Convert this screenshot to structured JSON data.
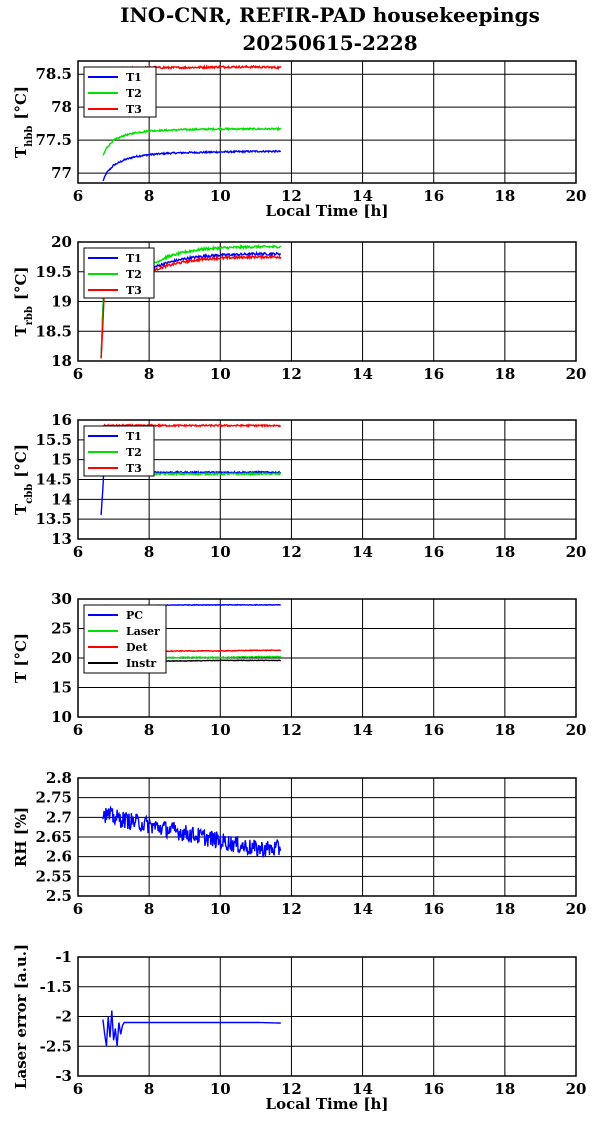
{
  "page": {
    "title_line1": "INO-CNR, REFIR-PAD housekeepings",
    "title_line2": "20250615-2228"
  },
  "chart_data": [
    {
      "type": "line",
      "title": "",
      "ylabel_main": "T",
      "ylabel_sub": "hbb",
      "ylabel_unit": "[°C]",
      "xlabel": "Local Time [h]",
      "xlim": [
        6,
        20
      ],
      "ylim": [
        76.85,
        78.7
      ],
      "xticks": [
        6,
        8,
        10,
        12,
        14,
        16,
        18,
        20
      ],
      "yticks": [
        77,
        77.5,
        78,
        78.5
      ],
      "ytick_labels": [
        "77",
        "77.5",
        "78",
        "78.5"
      ],
      "grid": true,
      "legend_position": "top-left",
      "series": [
        {
          "name": "T1",
          "color": "#0000ff",
          "noise": 0.012,
          "x": [
            6.7,
            6.8,
            7.0,
            7.3,
            7.6,
            8.0,
            8.5,
            9.0,
            10.0,
            11.0,
            11.7
          ],
          "y": [
            76.88,
            77.0,
            77.12,
            77.2,
            77.25,
            77.28,
            77.3,
            77.31,
            77.32,
            77.33,
            77.33
          ]
        },
        {
          "name": "T2",
          "color": "#00e000",
          "noise": 0.012,
          "x": [
            6.7,
            6.8,
            7.0,
            7.3,
            7.6,
            8.0,
            8.5,
            9.0,
            10.0,
            11.0,
            11.7
          ],
          "y": [
            77.26,
            77.38,
            77.5,
            77.57,
            77.61,
            77.64,
            77.65,
            77.66,
            77.67,
            77.67,
            77.67
          ]
        },
        {
          "name": "T3",
          "color": "#ff0000",
          "noise": 0.015,
          "x": [
            7.2,
            8.0,
            9.0,
            10.0,
            11.0,
            11.7
          ],
          "y": [
            78.59,
            78.6,
            78.6,
            78.61,
            78.61,
            78.6
          ]
        }
      ]
    },
    {
      "type": "line",
      "title": "",
      "ylabel_main": "T",
      "ylabel_sub": "rbb",
      "ylabel_unit": "[°C]",
      "xlabel": "",
      "xlim": [
        6,
        20
      ],
      "ylim": [
        18,
        20
      ],
      "xticks": [
        6,
        8,
        10,
        12,
        14,
        16,
        18,
        20
      ],
      "yticks": [
        18,
        18.5,
        19,
        19.5,
        20
      ],
      "ytick_labels": [
        "18",
        "18.5",
        "19",
        "19.5",
        "20"
      ],
      "grid": true,
      "legend_position": "top-left",
      "series": [
        {
          "name": "T1",
          "color": "#0000ff",
          "noise": 0.02,
          "x": [
            6.65,
            6.7,
            6.75,
            8.0,
            8.5,
            9.0,
            9.5,
            10.0,
            11.0,
            11.7
          ],
          "y": [
            18.05,
            18.9,
            19.45,
            19.55,
            19.65,
            19.72,
            19.76,
            19.78,
            19.8,
            19.8
          ]
        },
        {
          "name": "T2",
          "color": "#00e000",
          "noise": 0.02,
          "x": [
            6.65,
            6.7,
            6.75,
            8.0,
            8.5,
            9.0,
            9.5,
            10.0,
            11.0,
            11.7
          ],
          "y": [
            18.05,
            18.9,
            19.5,
            19.6,
            19.75,
            19.83,
            19.88,
            19.9,
            19.92,
            19.92
          ]
        },
        {
          "name": "T3",
          "color": "#ff0000",
          "noise": 0.02,
          "x": [
            6.65,
            6.7,
            6.75,
            8.0,
            8.5,
            9.0,
            9.5,
            10.0,
            11.0,
            11.7
          ],
          "y": [
            18.05,
            18.6,
            19.4,
            19.5,
            19.6,
            19.67,
            19.71,
            19.73,
            19.75,
            19.75
          ]
        }
      ]
    },
    {
      "type": "line",
      "title": "",
      "ylabel_main": "T",
      "ylabel_sub": "cbb",
      "ylabel_unit": "[°C]",
      "xlabel": "",
      "xlim": [
        6,
        20
      ],
      "ylim": [
        13,
        16
      ],
      "xticks": [
        6,
        8,
        10,
        12,
        14,
        16,
        18,
        20
      ],
      "yticks": [
        13,
        13.5,
        14,
        14.5,
        15,
        15.5,
        16
      ],
      "ytick_labels": [
        "13",
        "13.5",
        "14",
        "14.5",
        "15",
        "15.5",
        "16"
      ],
      "grid": true,
      "legend_position": "top-left",
      "series": [
        {
          "name": "T1",
          "color": "#0000ff",
          "noise": 0.02,
          "x": [
            6.65,
            6.7,
            6.72,
            6.8,
            8.0,
            9.0,
            10.0,
            11.0,
            11.7
          ],
          "y": [
            13.6,
            14.3,
            14.65,
            14.68,
            14.68,
            14.68,
            14.68,
            14.68,
            14.68
          ]
        },
        {
          "name": "T2",
          "color": "#00e000",
          "noise": 0.02,
          "x": [
            6.7,
            8.0,
            9.0,
            10.0,
            11.0,
            11.7
          ],
          "y": [
            14.65,
            14.64,
            14.64,
            14.64,
            14.64,
            14.64
          ]
        },
        {
          "name": "T3",
          "color": "#ff0000",
          "noise": 0.02,
          "x": [
            6.7,
            8.0,
            9.0,
            10.0,
            11.0,
            11.7
          ],
          "y": [
            15.86,
            15.86,
            15.86,
            15.86,
            15.86,
            15.86
          ]
        }
      ]
    },
    {
      "type": "line",
      "title": "",
      "ylabel_main": "T [°C]",
      "ylabel_sub": "",
      "ylabel_unit": "",
      "xlabel": "",
      "xlim": [
        6,
        20
      ],
      "ylim": [
        10,
        30
      ],
      "xticks": [
        6,
        8,
        10,
        12,
        14,
        16,
        18,
        20
      ],
      "yticks": [
        10,
        15,
        20,
        25,
        30
      ],
      "ytick_labels": [
        "10",
        "15",
        "20",
        "25",
        "30"
      ],
      "grid": true,
      "legend_position": "top-left",
      "series": [
        {
          "name": "PC",
          "color": "#0000ff",
          "noise": 0.05,
          "x": [
            6.7,
            8.0,
            9.0,
            10.0,
            11.0,
            11.7
          ],
          "y": [
            28.9,
            28.9,
            29.0,
            29.0,
            29.0,
            29.0
          ]
        },
        {
          "name": "Laser",
          "color": "#00e000",
          "noise": 0.08,
          "x": [
            6.7,
            8.0,
            9.0,
            10.0,
            11.0,
            11.7
          ],
          "y": [
            20.0,
            20.0,
            20.1,
            20.1,
            20.2,
            20.2
          ]
        },
        {
          "name": "Det",
          "color": "#ff0000",
          "noise": 0.06,
          "x": [
            6.7,
            8.0,
            9.0,
            10.0,
            11.0,
            11.7
          ],
          "y": [
            21.0,
            21.1,
            21.2,
            21.2,
            21.3,
            21.3
          ]
        },
        {
          "name": "Instr",
          "color": "#000000",
          "noise": 0.04,
          "x": [
            6.7,
            8.0,
            9.0,
            10.0,
            11.0,
            11.7
          ],
          "y": [
            19.5,
            19.5,
            19.5,
            19.6,
            19.6,
            19.6
          ]
        }
      ]
    },
    {
      "type": "line",
      "title": "",
      "ylabel_main": "RH [%]",
      "ylabel_sub": "",
      "ylabel_unit": "",
      "xlabel": "",
      "xlim": [
        6,
        20
      ],
      "ylim": [
        2.5,
        2.8
      ],
      "xticks": [
        6,
        8,
        10,
        12,
        14,
        16,
        18,
        20
      ],
      "yticks": [
        2.5,
        2.55,
        2.6,
        2.65,
        2.7,
        2.75,
        2.8
      ],
      "ytick_labels": [
        "2.5",
        "2.55",
        "2.6",
        "2.65",
        "2.7",
        "2.75",
        "2.8"
      ],
      "grid": true,
      "legend_position": "",
      "series": [
        {
          "name": "",
          "color": "#0000ff",
          "noise": 0.022,
          "x": [
            6.7,
            7.0,
            7.5,
            8.0,
            8.5,
            9.0,
            9.5,
            10.0,
            10.5,
            11.0,
            11.5,
            11.7
          ],
          "y": [
            2.71,
            2.7,
            2.69,
            2.68,
            2.67,
            2.66,
            2.65,
            2.64,
            2.63,
            2.62,
            2.62,
            2.62
          ]
        }
      ]
    },
    {
      "type": "line",
      "title": "",
      "ylabel_main": "Laser error [a.u.]",
      "ylabel_sub": "",
      "ylabel_unit": "",
      "xlabel": "Local Time [h]",
      "xlim": [
        6,
        20
      ],
      "ylim": [
        -3,
        -1
      ],
      "xticks": [
        6,
        8,
        10,
        12,
        14,
        16,
        18,
        20
      ],
      "yticks": [
        -3,
        -2.5,
        -2,
        -1.5,
        -1
      ],
      "ytick_labels": [
        "-3",
        "-2.5",
        "-2",
        "-1.5",
        "-1"
      ],
      "grid": true,
      "legend_position": "",
      "series": [
        {
          "name": "",
          "color": "#0000ff",
          "noise": 0.0,
          "x": [
            6.7,
            6.75,
            6.8,
            6.85,
            6.9,
            6.95,
            7.0,
            7.05,
            7.1,
            7.15,
            7.2,
            7.25,
            7.3,
            8.0,
            9.0,
            10.0,
            11.0,
            11.7
          ],
          "y": [
            -2.05,
            -2.3,
            -2.5,
            -2.0,
            -2.35,
            -1.9,
            -2.4,
            -2.2,
            -2.5,
            -2.1,
            -2.3,
            -2.15,
            -2.1,
            -2.1,
            -2.1,
            -2.1,
            -2.1,
            -2.11
          ]
        }
      ]
    }
  ]
}
